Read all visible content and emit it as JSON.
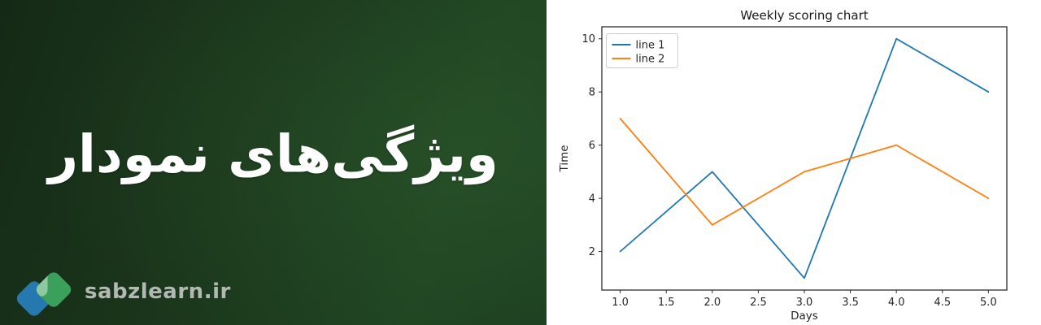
{
  "left_panel": {
    "title": "ویژگی‌های نمودار",
    "logo_text": "sabzlearn.ir",
    "logo_colors": {
      "left_diamond": "#2679ae",
      "right_diamond": "#3ba05b",
      "overlap_highlight": "rgba(255,255,255,0.42)"
    }
  },
  "chart_data": {
    "type": "line",
    "title": "Weekly scoring chart",
    "xlabel": "Days",
    "ylabel": "Time",
    "x": [
      1,
      2,
      3,
      4,
      5
    ],
    "series": [
      {
        "name": "line 1",
        "values": [
          2,
          5,
          1,
          10,
          8
        ],
        "color": "#1f77b4"
      },
      {
        "name": "line 2",
        "values": [
          7,
          3,
          5,
          6,
          4
        ],
        "color": "#ff7f0e"
      }
    ],
    "xticks": [
      1.0,
      1.5,
      2.0,
      2.5,
      3.0,
      3.5,
      4.0,
      4.5,
      5.0
    ],
    "xtick_labels": [
      "1.0",
      "1.5",
      "2.0",
      "2.5",
      "3.0",
      "3.5",
      "4.0",
      "4.5",
      "5.0"
    ],
    "yticks": [
      2,
      4,
      6,
      8,
      10
    ],
    "ytick_labels": [
      "2",
      "4",
      "6",
      "8",
      "10"
    ],
    "xlim": [
      0.8,
      5.2
    ],
    "ylim": [
      0.55,
      10.45
    ],
    "grid": false,
    "legend_position": "upper left"
  }
}
